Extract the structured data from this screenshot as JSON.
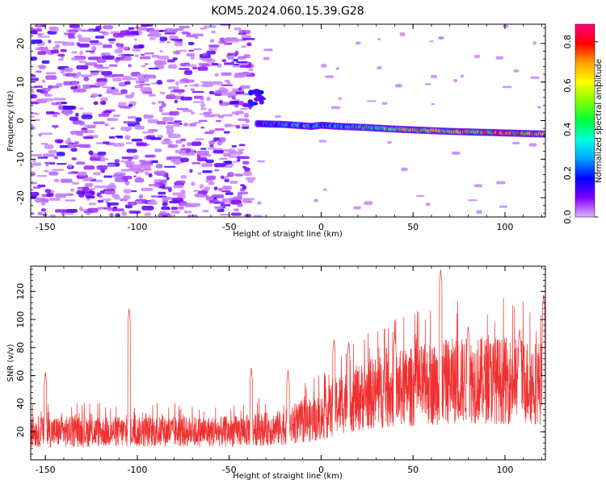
{
  "title": "KOM5.2024.060.15.39.G28",
  "chart_data": [
    {
      "type": "heatmap",
      "xlabel": "Height of straight line (km)",
      "ylabel": "Frequency (Hz)",
      "xlim": [
        -158,
        122
      ],
      "ylim": [
        -25,
        25
      ],
      "xticks": [
        -150,
        -100,
        -50,
        0,
        50,
        100
      ],
      "yticks": [
        -20,
        -10,
        0,
        10,
        20
      ],
      "colorbar": {
        "label": "Normalized spectral amplitude",
        "range": [
          0,
          0.88
        ],
        "ticks": [
          0.0,
          0.2,
          0.4,
          0.6,
          0.8
        ],
        "colormap": [
          "#e0b0ff",
          "#8000ff",
          "#0000ff",
          "#00a0ff",
          "#00ffe0",
          "#00ff40",
          "#80ff00",
          "#ffff00",
          "#ffa000",
          "#ff0000",
          "#ff0080"
        ]
      },
      "noise_region": {
        "x": [
          -158,
          -38
        ],
        "y": [
          -25,
          25
        ],
        "amplitude": [
          0.02,
          0.15
        ]
      },
      "signal_ridge": [
        {
          "x": -35,
          "freq": -0.8,
          "amp": 0.2
        },
        {
          "x": -20,
          "freq": -1.0,
          "amp": 0.25
        },
        {
          "x": -5,
          "freq": -1.5,
          "amp": 0.3
        },
        {
          "x": 0,
          "freq": -1.2,
          "amp": 0.25
        },
        {
          "x": 10,
          "freq": -1.5,
          "amp": 0.3
        },
        {
          "x": 25,
          "freq": -1.8,
          "amp": 0.35
        },
        {
          "x": 40,
          "freq": -2.2,
          "amp": 0.5
        },
        {
          "x": 55,
          "freq": -2.5,
          "amp": 0.6
        },
        {
          "x": 70,
          "freq": -2.8,
          "amp": 0.55
        },
        {
          "x": 85,
          "freq": -3.0,
          "amp": 0.65
        },
        {
          "x": 100,
          "freq": -3.2,
          "amp": 0.7
        },
        {
          "x": 115,
          "freq": -3.4,
          "amp": 0.65
        },
        {
          "x": 122,
          "freq": -3.5,
          "amp": 0.6
        }
      ],
      "blob": {
        "x": -35,
        "freq": 5.5,
        "amp": 0.1
      }
    },
    {
      "type": "line",
      "xlabel": "Height of straight line (km)",
      "ylabel": "SNR (v/v)",
      "xlim": [
        -158,
        122
      ],
      "ylim": [
        0,
        138
      ],
      "xticks": [
        -150,
        -100,
        -50,
        0,
        50,
        100
      ],
      "yticks": [
        20,
        40,
        60,
        80,
        100,
        120
      ],
      "color": "#f03030",
      "baseline": [
        {
          "x": -158,
          "y": 20
        },
        {
          "x": -100,
          "y": 20
        },
        {
          "x": -50,
          "y": 20
        },
        {
          "x": -20,
          "y": 23
        },
        {
          "x": 0,
          "y": 30
        },
        {
          "x": 10,
          "y": 40
        },
        {
          "x": 30,
          "y": 48
        },
        {
          "x": 50,
          "y": 52
        },
        {
          "x": 70,
          "y": 56
        },
        {
          "x": 90,
          "y": 57
        },
        {
          "x": 110,
          "y": 56
        },
        {
          "x": 122,
          "y": 55
        }
      ],
      "spikes": [
        {
          "x": -104.5,
          "y": 108
        },
        {
          "x": 7,
          "y": 86
        },
        {
          "x": 65,
          "y": 136
        },
        {
          "x": 121,
          "y": 118
        },
        {
          "x": -38,
          "y": 66
        },
        {
          "x": -18,
          "y": 64
        },
        {
          "x": -150,
          "y": 63
        },
        {
          "x": 15,
          "y": 84
        },
        {
          "x": 40,
          "y": 90
        },
        {
          "x": 80,
          "y": 95
        },
        {
          "x": 108,
          "y": 93
        }
      ]
    }
  ]
}
